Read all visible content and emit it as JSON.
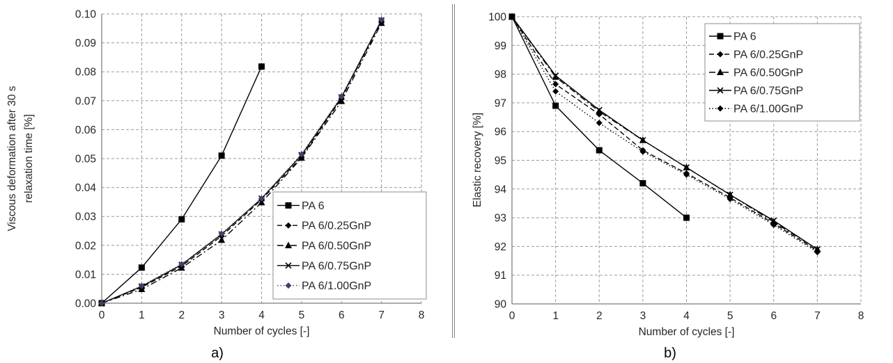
{
  "chart_data": [
    {
      "type": "line",
      "panel_label": "a)",
      "xlabel": "Number of cycles [-]",
      "ylabel_lines": [
        "Viscous deformation after 30 s",
        "relaxation time [%]"
      ],
      "xlim": [
        0,
        8
      ],
      "ylim": [
        0,
        0.1
      ],
      "x_ticks": [
        "0",
        "1",
        "2",
        "3",
        "4",
        "5",
        "6",
        "7",
        "8"
      ],
      "y_ticks": [
        "0.00",
        "0.01",
        "0.02",
        "0.03",
        "0.04",
        "0.05",
        "0.06",
        "0.07",
        "0.08",
        "0.09",
        "0.10"
      ],
      "grid": true,
      "legend_position": "bottom-right",
      "series": [
        {
          "name": "PA 6",
          "marker": "square",
          "dash": "solid",
          "color": "#000000",
          "x": [
            0,
            1,
            2,
            3,
            4
          ],
          "y": [
            0.0,
            0.0123,
            0.029,
            0.051,
            0.0818
          ]
        },
        {
          "name": "PA 6/0.25GnP",
          "marker": "diamond",
          "dash": "dashed",
          "color": "#000000",
          "x": [
            0,
            1,
            2,
            3,
            4,
            5,
            6,
            7
          ],
          "y": [
            0.0,
            0.0055,
            0.0128,
            0.0232,
            0.0358,
            0.0505,
            0.0708,
            0.0975
          ]
        },
        {
          "name": "PA 6/0.50GnP",
          "marker": "triangle",
          "dash": "dashdot",
          "color": "#000000",
          "x": [
            0,
            1,
            2,
            3,
            4,
            5,
            6,
            7
          ],
          "y": [
            0.0,
            0.0048,
            0.0122,
            0.0218,
            0.0348,
            0.0502,
            0.0698,
            0.0968
          ]
        },
        {
          "name": "PA 6/0.75GnP",
          "marker": "x",
          "dash": "solid",
          "color": "#000000",
          "x": [
            0,
            1,
            2,
            3,
            4,
            5,
            6,
            7
          ],
          "y": [
            0.0,
            0.0058,
            0.0133,
            0.0238,
            0.0362,
            0.0512,
            0.0712,
            0.0978
          ]
        },
        {
          "name": "PA 6/1.00GnP",
          "marker": "diamond",
          "dash": "dotted",
          "color": "#4b3a6b",
          "x": [
            0,
            1,
            2,
            3,
            4,
            5,
            6,
            7
          ],
          "y": [
            0.0,
            0.006,
            0.0135,
            0.024,
            0.0362,
            0.0515,
            0.0715,
            0.098
          ]
        }
      ]
    },
    {
      "type": "line",
      "panel_label": "b)",
      "xlabel": "Number of cycles [-]",
      "ylabel_lines": [
        "Elastic recovery [%]"
      ],
      "xlim": [
        0,
        8
      ],
      "ylim": [
        90,
        100
      ],
      "x_ticks": [
        "0",
        "1",
        "2",
        "3",
        "4",
        "5",
        "6",
        "7",
        "8"
      ],
      "y_ticks": [
        "90",
        "91",
        "92",
        "93",
        "94",
        "95",
        "96",
        "97",
        "98",
        "99",
        "100"
      ],
      "grid": true,
      "legend_position": "top-right",
      "series": [
        {
          "name": "PA 6",
          "marker": "square",
          "dash": "solid",
          "color": "#000000",
          "x": [
            0,
            1,
            2,
            3,
            4
          ],
          "y": [
            100,
            96.9,
            95.35,
            94.2,
            93.0
          ]
        },
        {
          "name": "PA 6/0.25GnP",
          "marker": "diamond",
          "dash": "dashed",
          "color": "#000000",
          "x": [
            0,
            1,
            2,
            3,
            4,
            5,
            6,
            7
          ],
          "y": [
            100,
            97.65,
            96.6,
            95.35,
            94.55,
            93.7,
            92.8,
            91.85
          ]
        },
        {
          "name": "PA 6/0.50GnP",
          "marker": "triangle",
          "dash": "dashdot",
          "color": "#000000",
          "x": [
            0,
            1,
            2,
            3,
            4,
            5,
            6,
            7
          ],
          "y": [
            100,
            97.9,
            96.7,
            95.7,
            94.75,
            93.8,
            92.85,
            91.9
          ]
        },
        {
          "name": "PA 6/0.75GnP",
          "marker": "x",
          "dash": "solid",
          "color": "#000000",
          "x": [
            0,
            1,
            2,
            3,
            4,
            5,
            6,
            7
          ],
          "y": [
            100,
            97.95,
            96.75,
            95.7,
            94.75,
            93.8,
            92.9,
            91.9
          ]
        },
        {
          "name": "PA 6/1.00GnP",
          "marker": "diamond",
          "dash": "dotted",
          "color": "#000000",
          "x": [
            0,
            1,
            2,
            3,
            4,
            5,
            6,
            7
          ],
          "y": [
            100,
            97.4,
            96.3,
            95.3,
            94.5,
            93.65,
            92.75,
            91.8
          ]
        }
      ]
    }
  ]
}
